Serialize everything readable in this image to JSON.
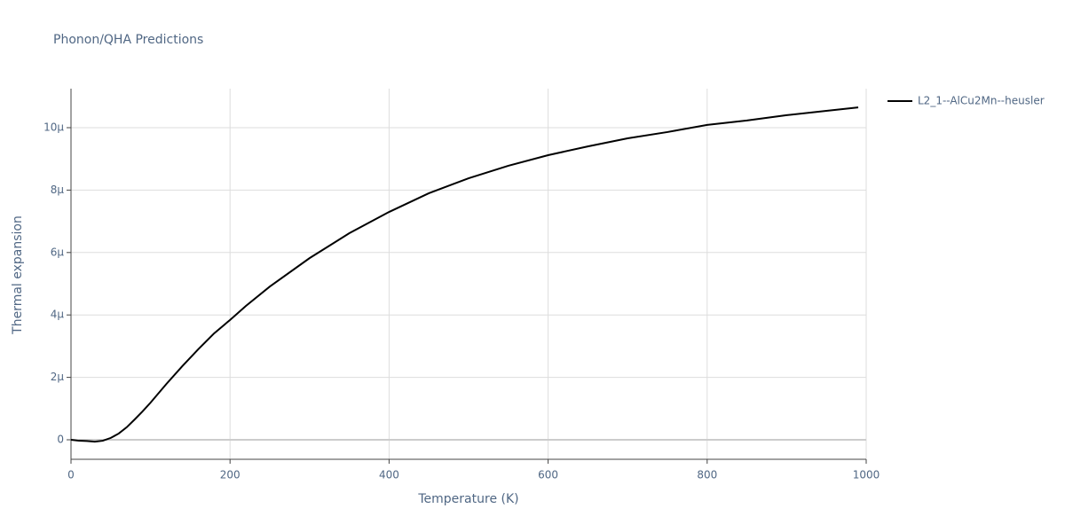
{
  "chart_data": {
    "type": "line",
    "title": "Phonon/QHA Predictions",
    "x_label": "Temperature (K)",
    "y_label": "Thermal expansion",
    "x": [
      0,
      10,
      20,
      30,
      40,
      50,
      60,
      70,
      80,
      90,
      100,
      120,
      140,
      160,
      180,
      200,
      220,
      250,
      300,
      350,
      400,
      450,
      500,
      550,
      600,
      650,
      700,
      750,
      800,
      850,
      900,
      950,
      990
    ],
    "series": [
      {
        "name": "L2_1--AlCu2Mn--heusler",
        "color": "#000000",
        "values": [
          0,
          -3e-08,
          -4e-08,
          -6e-08,
          -3e-08,
          6e-08,
          2e-07,
          4e-07,
          6.5e-07,
          9.1e-07,
          1.19e-06,
          1.79e-06,
          2.36e-06,
          2.9e-06,
          3.41e-06,
          3.84e-06,
          4.29e-06,
          4.91e-06,
          5.82e-06,
          6.62e-06,
          7.3e-06,
          7.9e-06,
          8.38e-06,
          8.78e-06,
          9.12e-06,
          9.4e-06,
          9.66e-06,
          9.86e-06,
          1.009e-05,
          1.023e-05,
          1.04e-05,
          1.054e-05,
          1.065e-05
        ]
      }
    ],
    "xlim": [
      0,
      1000
    ],
    "xticks": [
      0,
      200,
      400,
      600,
      800,
      1000
    ],
    "ylim": [
      -6.25e-07,
      1.125e-05
    ],
    "yticks": [
      0,
      {
        "value": 2e-06,
        "label": "2µ"
      },
      {
        "value": 4e-06,
        "label": "4µ"
      },
      {
        "value": 6e-06,
        "label": "6µ"
      },
      {
        "value": 8e-06,
        "label": "8µ"
      },
      {
        "value": 1e-05,
        "label": "10µ"
      }
    ],
    "grid": true,
    "legend": "right"
  }
}
